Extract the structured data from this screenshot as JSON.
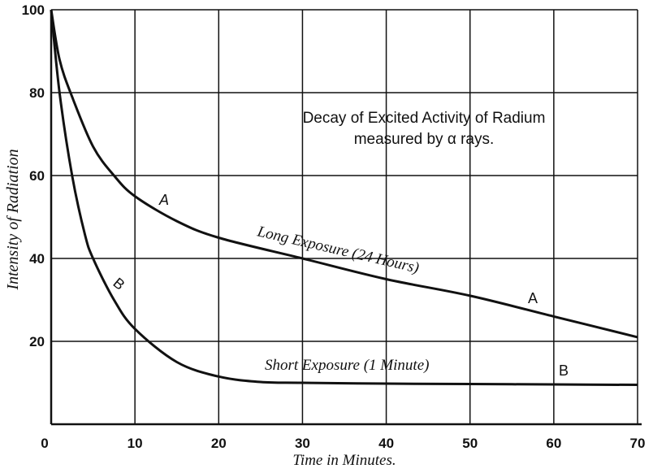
{
  "chart_data": {
    "type": "line",
    "title": "Decay of Excited Activity of Radium",
    "subtitle": "measured by α rays.",
    "xlabel": "Time in Minutes.",
    "ylabel": "Intensity of Radiation",
    "xlim": [
      0,
      70
    ],
    "ylim": [
      0,
      100
    ],
    "xticks": [
      "0",
      "10",
      "20",
      "30",
      "40",
      "50",
      "60",
      "70"
    ],
    "yticks": [
      "20",
      "40",
      "60",
      "80",
      "100"
    ],
    "grid": true,
    "series": [
      {
        "name": "Long Exposure (24 Hours)",
        "marker": "A",
        "x": [
          0,
          1,
          2.5,
          5,
          7.5,
          10,
          15,
          20,
          30,
          40,
          50,
          60,
          70
        ],
        "y": [
          100,
          88,
          79,
          67,
          60,
          55,
          49,
          45,
          40,
          35,
          31,
          26,
          21
        ]
      },
      {
        "name": "Short Exposure (1 Minute)",
        "marker": "B",
        "x": [
          0,
          1,
          2.5,
          4,
          5,
          7.5,
          10,
          15,
          20,
          25,
          30,
          40,
          50,
          60,
          70
        ],
        "y": [
          100,
          80,
          60,
          46,
          40,
          30,
          23,
          15,
          11.5,
          10.2,
          10,
          9.8,
          9.7,
          9.6,
          9.5
        ]
      }
    ]
  }
}
